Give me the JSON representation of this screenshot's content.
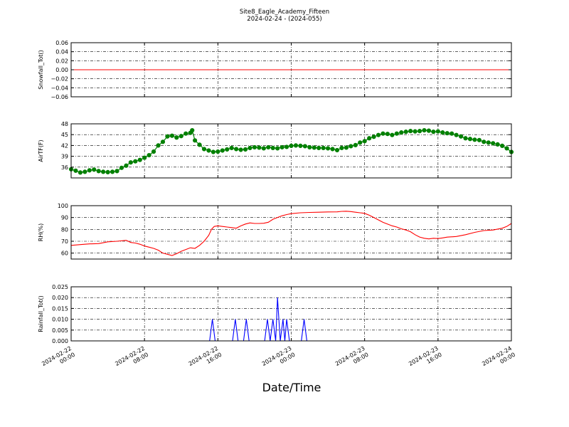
{
  "figure": {
    "title": "Site8_Eagle_Academy_Fifteen",
    "subtitle": "2024-02-24 - (2024-055)",
    "xlabel": "Date/Time"
  },
  "x_axis": {
    "range_hours": [
      0,
      48
    ],
    "tick_hours": [
      0,
      8,
      16,
      24,
      32,
      40,
      48
    ],
    "tick_labels": [
      [
        "2024-02-22",
        "00:00"
      ],
      [
        "2024-02-22",
        "08:00"
      ],
      [
        "2024-02-22",
        "16:00"
      ],
      [
        "2024-02-23",
        "00:00"
      ],
      [
        "2024-02-23",
        "08:00"
      ],
      [
        "2024-02-23",
        "16:00"
      ],
      [
        "2024-02-24",
        "00:00"
      ]
    ]
  },
  "chart_data": [
    {
      "type": "line",
      "ylabel": "Snowfall_Tot()",
      "ylim": [
        -0.06,
        0.06
      ],
      "yticks": [
        -0.06,
        -0.04,
        -0.02,
        0.0,
        0.02,
        0.04,
        0.06
      ],
      "ytick_labels": [
        "−0.06",
        "−0.04",
        "−0.02",
        "0.00",
        "0.02",
        "0.04",
        "0.06"
      ],
      "grid": true,
      "color": "#ff0000",
      "markers": false,
      "points": [
        [
          0,
          0
        ],
        [
          48,
          0
        ]
      ]
    },
    {
      "type": "line",
      "ylabel": "AirTF(F)",
      "ylim": [
        33,
        48
      ],
      "yticks": [
        36,
        39,
        42,
        45,
        48
      ],
      "ytick_labels": [
        "36",
        "39",
        "42",
        "45",
        "48"
      ],
      "grid": true,
      "color": "#008000",
      "markers": true,
      "points": [
        [
          0,
          35.4
        ],
        [
          0.5,
          35.0
        ],
        [
          1,
          34.5
        ],
        [
          1.5,
          34.7
        ],
        [
          2,
          35.1
        ],
        [
          2.5,
          35.3
        ],
        [
          3,
          34.9
        ],
        [
          3.5,
          34.7
        ],
        [
          4,
          34.6
        ],
        [
          4.5,
          34.7
        ],
        [
          5,
          34.9
        ],
        [
          5.5,
          35.8
        ],
        [
          6,
          36.4
        ],
        [
          6.5,
          37.3
        ],
        [
          7,
          37.6
        ],
        [
          7.5,
          38.0
        ],
        [
          8,
          38.6
        ],
        [
          8.5,
          39.3
        ],
        [
          9,
          40.3
        ],
        [
          9.5,
          42.0
        ],
        [
          10,
          43.0
        ],
        [
          10.5,
          44.5
        ],
        [
          11,
          44.7
        ],
        [
          11.5,
          44.2
        ],
        [
          12,
          44.6
        ],
        [
          12.5,
          45.3
        ],
        [
          13,
          45.5
        ],
        [
          13.2,
          46.2
        ],
        [
          13.5,
          43.4
        ],
        [
          14,
          42.2
        ],
        [
          14.5,
          41.0
        ],
        [
          15,
          40.6
        ],
        [
          15.5,
          40.2
        ],
        [
          16,
          40.3
        ],
        [
          16.5,
          40.6
        ],
        [
          17,
          40.9
        ],
        [
          17.5,
          41.3
        ],
        [
          18,
          41.0
        ],
        [
          18.5,
          40.8
        ],
        [
          19,
          40.9
        ],
        [
          19.5,
          41.3
        ],
        [
          20,
          41.5
        ],
        [
          20.5,
          41.4
        ],
        [
          21,
          41.2
        ],
        [
          21.5,
          41.5
        ],
        [
          22,
          41.3
        ],
        [
          22.5,
          41.2
        ],
        [
          23,
          41.5
        ],
        [
          23.5,
          41.6
        ],
        [
          24,
          41.9
        ],
        [
          24.5,
          42.0
        ],
        [
          25,
          41.9
        ],
        [
          25.5,
          41.8
        ],
        [
          26,
          41.5
        ],
        [
          26.5,
          41.4
        ],
        [
          27,
          41.3
        ],
        [
          27.5,
          41.3
        ],
        [
          28,
          41.2
        ],
        [
          28.5,
          41.0
        ],
        [
          29,
          40.7
        ],
        [
          29.5,
          41.3
        ],
        [
          30,
          41.4
        ],
        [
          30.5,
          41.8
        ],
        [
          31,
          42.1
        ],
        [
          31.5,
          42.8
        ],
        [
          32,
          43.2
        ],
        [
          32.5,
          44.0
        ],
        [
          33,
          44.4
        ],
        [
          33.5,
          44.9
        ],
        [
          34,
          45.3
        ],
        [
          34.5,
          45.2
        ],
        [
          35,
          44.9
        ],
        [
          35.5,
          45.3
        ],
        [
          36,
          45.6
        ],
        [
          36.5,
          45.8
        ],
        [
          37,
          46.0
        ],
        [
          37.5,
          45.9
        ],
        [
          38,
          46.0
        ],
        [
          38.5,
          46.2
        ],
        [
          39,
          46.1
        ],
        [
          39.5,
          45.8
        ],
        [
          40,
          45.9
        ],
        [
          40.5,
          45.6
        ],
        [
          41,
          45.4
        ],
        [
          41.5,
          45.3
        ],
        [
          42,
          44.9
        ],
        [
          42.5,
          44.5
        ],
        [
          43,
          44.0
        ],
        [
          43.5,
          43.8
        ],
        [
          44,
          43.6
        ],
        [
          44.5,
          43.5
        ],
        [
          45,
          43.0
        ],
        [
          45.5,
          42.8
        ],
        [
          46,
          42.6
        ],
        [
          46.5,
          42.3
        ],
        [
          47,
          41.9
        ],
        [
          47.5,
          41.2
        ],
        [
          48,
          40.2
        ]
      ]
    },
    {
      "type": "line",
      "ylabel": "RH(%)",
      "ylim": [
        55,
        100
      ],
      "yticks": [
        60,
        70,
        80,
        90,
        100
      ],
      "ytick_labels": [
        "60",
        "70",
        "80",
        "90",
        "100"
      ],
      "grid": true,
      "color": "#ff0000",
      "markers": false,
      "points": [
        [
          0,
          66.5
        ],
        [
          1,
          67.2
        ],
        [
          2,
          67.8
        ],
        [
          3,
          68.0
        ],
        [
          4,
          69.5
        ],
        [
          5,
          70.0
        ],
        [
          6,
          70.8
        ],
        [
          6.5,
          69.0
        ],
        [
          7,
          68.5
        ],
        [
          7.5,
          67.5
        ],
        [
          8,
          66.0
        ],
        [
          8.5,
          65.0
        ],
        [
          9,
          64.0
        ],
        [
          9.5,
          62.5
        ],
        [
          10,
          60.0
        ],
        [
          10.5,
          59.0
        ],
        [
          11,
          58.0
        ],
        [
          11.5,
          59.5
        ],
        [
          12,
          61.5
        ],
        [
          12.5,
          63.0
        ],
        [
          13,
          64.5
        ],
        [
          13.5,
          64.0
        ],
        [
          14,
          66.5
        ],
        [
          14.5,
          70.0
        ],
        [
          15,
          75.0
        ],
        [
          15.3,
          80.0
        ],
        [
          15.6,
          82.5
        ],
        [
          16,
          83.0
        ],
        [
          16.5,
          82.5
        ],
        [
          17,
          82.0
        ],
        [
          17.5,
          81.5
        ],
        [
          18,
          81.0
        ],
        [
          18.5,
          83.0
        ],
        [
          19,
          84.5
        ],
        [
          19.5,
          85.5
        ],
        [
          20,
          85.0
        ],
        [
          20.5,
          85.0
        ],
        [
          21,
          85.2
        ],
        [
          21.5,
          86.0
        ],
        [
          22,
          88.5
        ],
        [
          22.5,
          90.0
        ],
        [
          23,
          91.5
        ],
        [
          23.5,
          92.5
        ],
        [
          24,
          93.3
        ],
        [
          25,
          94.0
        ],
        [
          26,
          94.3
        ],
        [
          27,
          94.5
        ],
        [
          28,
          94.7
        ],
        [
          29,
          94.8
        ],
        [
          29.5,
          95.2
        ],
        [
          30,
          95.3
        ],
        [
          30.5,
          95.0
        ],
        [
          31,
          94.5
        ],
        [
          31.5,
          94.0
        ],
        [
          32,
          93.5
        ],
        [
          32.5,
          92.0
        ],
        [
          33,
          90.0
        ],
        [
          33.5,
          88.0
        ],
        [
          34,
          86.0
        ],
        [
          34.5,
          84.5
        ],
        [
          35,
          83.0
        ],
        [
          35.5,
          82.0
        ],
        [
          36,
          80.5
        ],
        [
          36.5,
          79.5
        ],
        [
          37,
          78.0
        ],
        [
          37.5,
          75.5
        ],
        [
          38,
          73.5
        ],
        [
          38.5,
          72.5
        ],
        [
          39,
          72.0
        ],
        [
          39.5,
          72.5
        ],
        [
          40,
          72.3
        ],
        [
          40.5,
          72.8
        ],
        [
          41,
          73.5
        ],
        [
          42,
          74.0
        ],
        [
          43,
          75.5
        ],
        [
          44,
          77.5
        ],
        [
          45,
          79.0
        ],
        [
          46,
          79.5
        ],
        [
          47,
          81.0
        ],
        [
          47.5,
          82.5
        ],
        [
          48,
          85.0
        ]
      ]
    },
    {
      "type": "line",
      "ylabel": "Rainfall_Tot()",
      "ylim": [
        0,
        0.025
      ],
      "yticks": [
        0.0,
        0.005,
        0.01,
        0.015,
        0.02,
        0.025
      ],
      "ytick_labels": [
        "0.000",
        "0.005",
        "0.010",
        "0.015",
        "0.020",
        "0.025"
      ],
      "grid": true,
      "color": "#0000ff",
      "markers": false,
      "points": [
        [
          0,
          0
        ],
        [
          15.1,
          0
        ],
        [
          15.4,
          0.01
        ],
        [
          15.7,
          0
        ],
        [
          17.6,
          0
        ],
        [
          17.9,
          0.01
        ],
        [
          18.2,
          0
        ],
        [
          18.8,
          0
        ],
        [
          19.1,
          0.01
        ],
        [
          19.4,
          0
        ],
        [
          21.1,
          0
        ],
        [
          21.4,
          0.01
        ],
        [
          21.7,
          0
        ],
        [
          22.0,
          0.01
        ],
        [
          22.3,
          0
        ],
        [
          22.5,
          0.02
        ],
        [
          22.8,
          0
        ],
        [
          23.1,
          0.01
        ],
        [
          23.3,
          0
        ],
        [
          23.5,
          0.01
        ],
        [
          23.8,
          0
        ],
        [
          25.1,
          0
        ],
        [
          25.4,
          0.01
        ],
        [
          25.7,
          0
        ],
        [
          48,
          0
        ]
      ]
    }
  ]
}
